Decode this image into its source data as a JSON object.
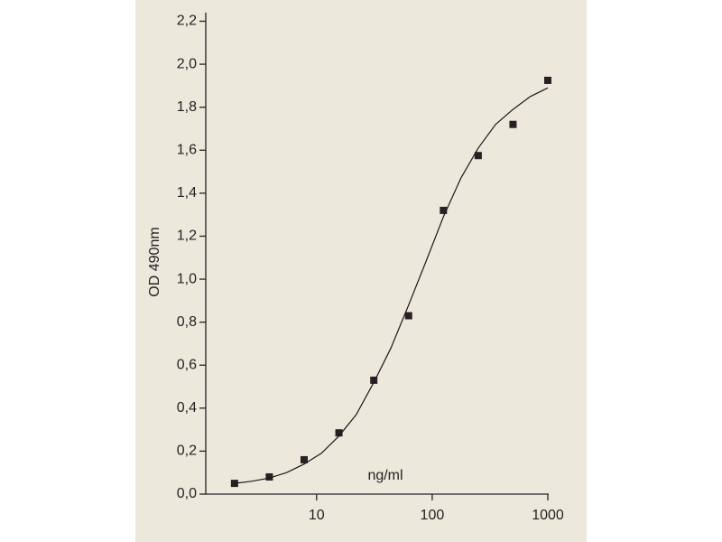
{
  "chart_data": {
    "type": "scatter",
    "xlabel": "ng/ml",
    "ylabel": "OD 490nm",
    "xscale": "log",
    "xlim": [
      1.1,
      1000
    ],
    "xticks": [
      10,
      100,
      1000
    ],
    "ylim": [
      0,
      2.2
    ],
    "yticks": [
      {
        "value": 0,
        "label": "0,0"
      },
      {
        "value": 0.2,
        "label": "0,2"
      },
      {
        "value": 0.4,
        "label": "0,4"
      },
      {
        "value": 0.6,
        "label": "0,6"
      },
      {
        "value": 0.8,
        "label": "0,8"
      },
      {
        "value": 1.0,
        "label": "1,0"
      },
      {
        "value": 1.2,
        "label": "1,2"
      },
      {
        "value": 1.4,
        "label": "1,4"
      },
      {
        "value": 1.6,
        "label": "1,6"
      },
      {
        "value": 1.8,
        "label": "1,8"
      },
      {
        "value": 2.0,
        "label": "2,0"
      },
      {
        "value": 2.2,
        "label": "2,2"
      }
    ],
    "series": [
      {
        "type": "scatter",
        "color": "#2a1f22",
        "x": [
          1.95,
          3.9,
          7.8,
          15.6,
          31.25,
          62.5,
          125,
          250,
          500,
          1000
        ],
        "values": [
          0.05,
          0.08,
          0.16,
          0.285,
          0.53,
          0.83,
          1.32,
          1.575,
          1.72,
          1.925
        ]
      },
      {
        "type": "line",
        "color": "#1a1a1a",
        "x": [
          1.95,
          2.76,
          3.9,
          5.5,
          7.8,
          11,
          15.6,
          22,
          31.25,
          44,
          62.5,
          88,
          125,
          177,
          250,
          354,
          500,
          707,
          1000
        ],
        "values": [
          0.05,
          0.06,
          0.075,
          0.1,
          0.14,
          0.19,
          0.27,
          0.37,
          0.52,
          0.68,
          0.88,
          1.08,
          1.29,
          1.47,
          1.61,
          1.72,
          1.79,
          1.85,
          1.89
        ]
      }
    ]
  }
}
